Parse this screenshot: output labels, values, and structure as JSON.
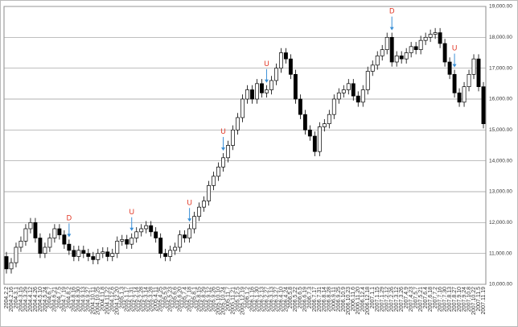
{
  "chart_data": {
    "type": "candlestick",
    "categories": [
      "2004.2.2",
      "2004.2.16",
      "2004.3.1",
      "2004.3.15",
      "2004.3.29",
      "2004.4.12",
      "2004.4.26",
      "2004.5.10",
      "2004.5.24",
      "2004.6.7",
      "2004.6.21",
      "2004.7.5",
      "2004.7.19",
      "2004.8.2",
      "2004.8.16",
      "2004.8.30",
      "2004.9.13",
      "2004.9.27",
      "2004.10.11",
      "2004.10.25",
      "2004.11.8",
      "2004.11.22",
      "2004.12.6",
      "2004.12.20",
      "2005.1.3",
      "2005.1.17",
      "2005.1.31",
      "2005.2.14",
      "2005.2.28",
      "2005.3.14",
      "2005.3.28",
      "2005.4.11",
      "2005.4.25",
      "2005.5.9",
      "2005.5.23",
      "2005.6.6",
      "2005.6.20",
      "2005.7.4",
      "2005.7.18",
      "2005.8.1",
      "2005.8.15",
      "2005.8.29",
      "2005.9.12",
      "2005.9.26",
      "2005.10.10",
      "2005.10.24",
      "2005.11.7",
      "2005.11.21",
      "2005.12.5",
      "2005.12.19",
      "2006.1.2",
      "2006.1.16",
      "2006.1.30",
      "2006.2.13",
      "2006.2.27",
      "2006.3.13",
      "2006.3.27",
      "2006.4.10",
      "2006.4.24",
      "2006.5.8",
      "2006.5.22",
      "2006.6.5",
      "2006.6.19",
      "2006.7.3",
      "2006.7.17",
      "2006.7.31",
      "2006.8.14",
      "2006.8.28",
      "2006.9.11",
      "2006.9.25",
      "2006.10.9",
      "2006.10.23",
      "2006.11.6",
      "2006.11.20",
      "2006.12.4",
      "2006.12.18",
      "2007.1.1",
      "2007.1.15",
      "2007.1.29",
      "2007.2.12",
      "2007.2.26",
      "2007.3.12",
      "2007.3.26",
      "2007.4.9",
      "2007.4.23",
      "2007.5.7",
      "2007.5.21",
      "2007.6.4",
      "2007.6.18",
      "2007.7.2",
      "2007.7.16",
      "2007.7.30",
      "2007.8.13",
      "2007.8.27",
      "2007.9.10",
      "2007.9.24",
      "2007.10.8",
      "2007.10.22",
      "2007.11.5",
      "2007.11.19"
    ],
    "open": [
      10900,
      10500,
      10700,
      11200,
      11400,
      11800,
      12000,
      11500,
      11000,
      11200,
      11500,
      11800,
      11600,
      11300,
      11100,
      10900,
      11100,
      11000,
      10900,
      10800,
      11000,
      11050,
      10900,
      11000,
      11400,
      11450,
      11300,
      11500,
      11700,
      11800,
      11900,
      11700,
      11500,
      11000,
      10900,
      11100,
      11200,
      11600,
      11500,
      11800,
      12200,
      12500,
      12700,
      13200,
      13500,
      13800,
      14100,
      14500,
      15000,
      15400,
      16000,
      16300,
      16000,
      16500,
      16200,
      16300,
      16600,
      17000,
      17500,
      17300,
      16800,
      16000,
      15500,
      15000,
      14800,
      14300,
      15100,
      15200,
      15500,
      16000,
      16200,
      16300,
      16500,
      16100,
      15900,
      16300,
      16900,
      17100,
      17400,
      17600,
      18000,
      17200,
      17400,
      17300,
      17500,
      17700,
      17600,
      17900,
      18000,
      18100,
      18150,
      17800,
      17200,
      16800,
      16200,
      15900,
      16400,
      16800,
      17300,
      16400
    ],
    "high": [
      11050,
      10850,
      11350,
      11550,
      11950,
      12150,
      12150,
      11650,
      11350,
      11650,
      11950,
      11950,
      11750,
      11450,
      11250,
      11250,
      11250,
      11150,
      11050,
      11150,
      11200,
      11200,
      11150,
      11550,
      11600,
      11600,
      11650,
      11850,
      11950,
      12050,
      12050,
      11850,
      11650,
      11150,
      11250,
      11350,
      11750,
      11750,
      11950,
      12350,
      12650,
      12850,
      13350,
      13650,
      13950,
      14250,
      14650,
      15150,
      15550,
      16150,
      16450,
      16450,
      16650,
      16650,
      16450,
      16750,
      17150,
      17650,
      17650,
      17450,
      16950,
      16150,
      15650,
      15150,
      14950,
      15250,
      15350,
      15650,
      16150,
      16350,
      16450,
      16650,
      16650,
      16250,
      16450,
      17050,
      17250,
      17550,
      17750,
      18150,
      18150,
      17550,
      17550,
      17650,
      17850,
      17850,
      18050,
      18150,
      18250,
      18300,
      18300,
      17950,
      17350,
      16950,
      16350,
      16550,
      16950,
      17450,
      17450,
      16550
    ],
    "low": [
      10350,
      10350,
      10550,
      11050,
      11250,
      11650,
      11350,
      10850,
      10850,
      11050,
      11350,
      11450,
      11150,
      10950,
      10750,
      10750,
      10850,
      10750,
      10650,
      10650,
      10850,
      10750,
      10750,
      10850,
      11250,
      11150,
      11150,
      11350,
      11550,
      11650,
      11550,
      11350,
      10850,
      10750,
      10750,
      10950,
      11050,
      11350,
      11350,
      11650,
      12050,
      12350,
      12550,
      13050,
      13350,
      13650,
      13950,
      14350,
      14850,
      15250,
      15850,
      15850,
      15850,
      16050,
      16050,
      16150,
      16450,
      16850,
      17150,
      16650,
      15850,
      15350,
      14850,
      14650,
      14150,
      14150,
      14950,
      15050,
      15350,
      15850,
      16050,
      16150,
      15950,
      15750,
      15750,
      16150,
      16750,
      16950,
      17250,
      17450,
      17050,
      17050,
      17150,
      17150,
      17350,
      17450,
      17450,
      17750,
      17850,
      17950,
      17650,
      17050,
      16650,
      16050,
      15750,
      15750,
      16250,
      16650,
      16250,
      15050
    ],
    "close": [
      10500,
      10700,
      11200,
      11400,
      11800,
      12000,
      11500,
      11000,
      11200,
      11500,
      11800,
      11600,
      11300,
      11100,
      10900,
      11100,
      11000,
      10900,
      10800,
      11000,
      11050,
      10900,
      11000,
      11400,
      11450,
      11300,
      11500,
      11700,
      11800,
      11900,
      11700,
      11500,
      11000,
      10900,
      11100,
      11200,
      11600,
      11500,
      11800,
      12200,
      12500,
      12700,
      13200,
      13500,
      13800,
      14100,
      14500,
      15000,
      15400,
      16000,
      16300,
      16000,
      16500,
      16200,
      16300,
      16600,
      17000,
      17500,
      17300,
      16800,
      16000,
      15500,
      15000,
      14800,
      14300,
      15100,
      15200,
      15500,
      16000,
      16200,
      16300,
      16500,
      16100,
      15900,
      16300,
      16900,
      17100,
      17400,
      17600,
      18000,
      17200,
      17400,
      17300,
      17500,
      17700,
      17600,
      17900,
      18000,
      18100,
      18150,
      17800,
      17200,
      16800,
      16200,
      15900,
      16400,
      16800,
      17300,
      16400,
      15200
    ],
    "up_color": "#ffffff",
    "down_color": "#000000",
    "arrow_color": "#3a8fd6",
    "ylim": [
      10000,
      19000
    ],
    "yticks": [
      {
        "value": 10000,
        "label": "10,000.00"
      },
      {
        "value": 11000,
        "label": "11,000.00"
      },
      {
        "value": 12000,
        "label": "12,000.00"
      },
      {
        "value": 13000,
        "label": "13,000.00"
      },
      {
        "value": 14000,
        "label": "14,000.00"
      },
      {
        "value": 15000,
        "label": "15,000.00"
      },
      {
        "value": 16000,
        "label": "16,000.00"
      },
      {
        "value": 17000,
        "label": "17,000.00"
      },
      {
        "value": 18000,
        "label": "18,000.00"
      },
      {
        "value": 19000,
        "label": "19,000.00"
      }
    ],
    "grid": true,
    "annotations": [
      {
        "text": "D",
        "category": "2004.8.2"
      },
      {
        "text": "U",
        "category": "2005.1.31"
      },
      {
        "text": "U",
        "category": "2005.7.18"
      },
      {
        "text": "U",
        "category": "2005.10.24"
      },
      {
        "text": "U",
        "category": "2006.2.27"
      },
      {
        "text": "D",
        "category": "2007.2.26"
      },
      {
        "text": "U",
        "category": "2007.8.27"
      }
    ]
  }
}
